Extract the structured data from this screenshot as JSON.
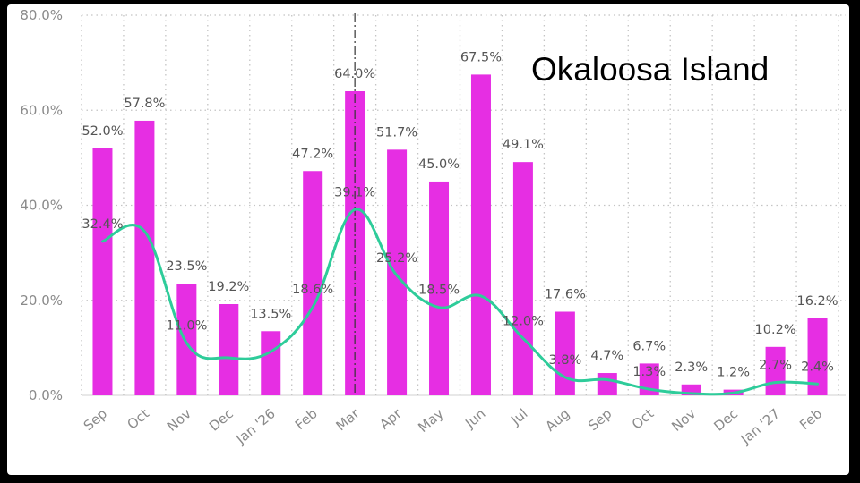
{
  "chart_data": {
    "type": "bar",
    "title": "Okaloosa Island",
    "categories": [
      "Sep",
      "Oct",
      "Nov",
      "Dec",
      "Jan '26",
      "Feb",
      "Mar",
      "Apr",
      "May",
      "Jun",
      "Jul",
      "Aug",
      "Sep",
      "Oct",
      "Nov",
      "Dec",
      "Jan '27",
      "Feb"
    ],
    "series": [
      {
        "type": "bar",
        "values": [
          52.0,
          57.8,
          23.5,
          19.2,
          13.5,
          47.2,
          64.0,
          51.7,
          45.0,
          67.5,
          49.1,
          17.6,
          4.7,
          6.7,
          2.3,
          1.2,
          10.2,
          16.2
        ],
        "color": "#e62ee3"
      },
      {
        "type": "line",
        "values": [
          32.4,
          34.5,
          11.0,
          7.9,
          9.2,
          18.6,
          39.1,
          25.2,
          18.5,
          20.9,
          12.0,
          3.8,
          3.3,
          1.3,
          0.4,
          0.5,
          2.7,
          2.4
        ],
        "labels": [
          "32.4%",
          "",
          "11.0%",
          "",
          "",
          "18.6%",
          "39.1%",
          "25.2%",
          "18.5%",
          "",
          "12.0%",
          "3.8%",
          "",
          "1.3%",
          "",
          "",
          "2.7%",
          "2.4%"
        ],
        "color": "#2ecc9a"
      }
    ],
    "bar_labels": [
      "52.0%",
      "57.8%",
      "23.5%",
      "19.2%",
      "13.5%",
      "47.2%",
      "64.0%",
      "51.7%",
      "45.0%",
      "67.5%",
      "49.1%",
      "17.6%",
      "4.7%",
      "6.7%",
      "2.3%",
      "1.2%",
      "10.2%",
      "16.2%"
    ],
    "yticks": [
      "0.0%",
      "20.0%",
      "40.0%",
      "60.0%",
      "80.0%"
    ],
    "ylim": [
      0,
      80
    ],
    "grid": true,
    "marker_category": "Mar",
    "xlabel": "",
    "ylabel": ""
  }
}
